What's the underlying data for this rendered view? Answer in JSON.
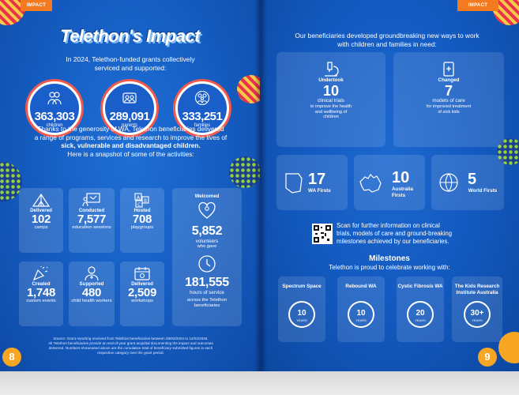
{
  "tabs": {
    "left": "IMPACT",
    "right": "IMPACT"
  },
  "left": {
    "title": "Telethon's Impact",
    "intro_1": "In 2024, Telethon-funded grants collectively",
    "intro_2": "serviced and supported:",
    "stats": [
      {
        "value": "363,303",
        "label": "children",
        "icon": "children-icon"
      },
      {
        "value": "289,091",
        "label": "parents",
        "icon": "parents-icon"
      },
      {
        "value": "333,251",
        "label": "families",
        "icon": "family-icon"
      }
    ],
    "para_1": "Thanks to the generosity of WA, Telethon beneficiaries delivered",
    "para_2": "a range of programs, services and research to improve the lives of",
    "para_3": "sick, vulnerable and disadvantaged children.",
    "para_4": "Here is a snapshot of some of the activities:",
    "activities": [
      {
        "top": "Delivered",
        "value": "102",
        "bottom": "camps",
        "icon": "tent-icon"
      },
      {
        "top": "Conducted",
        "value": "7,577",
        "bottom": "education sessions",
        "icon": "presentation-icon"
      },
      {
        "top": "Hosted",
        "value": "708",
        "bottom": "playgroups",
        "icon": "abc-blocks-icon"
      },
      {
        "top": "Created",
        "value": "1,748",
        "bottom": "custom events",
        "icon": "party-popper-icon"
      },
      {
        "top": "Supported",
        "value": "480",
        "bottom": "child health workers",
        "icon": "health-worker-icon"
      },
      {
        "top": "Delivered",
        "value": "2,509",
        "bottom": "workshops",
        "icon": "calendar-icon"
      }
    ],
    "volunteers": {
      "top": "Welcomed",
      "value": "5,852",
      "mid1": "volunteers",
      "mid2": "who gave",
      "hours": "181,555",
      "hours_label": "hours of service",
      "tail1": "across the Telethon",
      "tail2": "beneficiaries"
    },
    "source_1": "Source: Grant reporting received from Telethon beneficiaries between 29/02/2024 to 12/02/2025.",
    "source_2": "All Telethon beneficiaries provide an end-of-year grant acquittal documenting the impact and outcomes",
    "source_3": "delivered. Numbers showcased above are the cumulative total of beneficiary submitted figures in each",
    "source_4": "respective category over the grant period.",
    "page_number": "8"
  },
  "right": {
    "head_1": "Our beneficiaries developed groundbreaking new ways to work",
    "head_2": "with children and families in need:",
    "undertook": {
      "top": "Undertook",
      "value": "10",
      "l1": "clinical trials",
      "l2": "to improve the health",
      "l3": "and wellbeing of",
      "l4": "children"
    },
    "changed": {
      "top": "Changed",
      "value": "7",
      "l1": "models of care",
      "l2": "for improved treatment",
      "l3": "of sick kids"
    },
    "firsts": [
      {
        "value": "17",
        "label": "WA Firsts",
        "icon": "wa-map-icon"
      },
      {
        "value": "10",
        "label": "Australia Firsts",
        "icon": "australia-map-icon"
      },
      {
        "value": "5",
        "label": "World Firsts",
        "icon": "globe-icon"
      }
    ],
    "scan_1": "Scan for further information on clinical",
    "scan_2": "trials, models of care and ground-breaking",
    "scan_3": "milestones achieved by our beneficiaries.",
    "milestones_title": "Milestones",
    "milestones_sub": "Telethon is proud to celebrate working with:",
    "milestones": [
      {
        "name": "Spectrum Space",
        "years": "10"
      },
      {
        "name": "Rebound WA",
        "years": "10"
      },
      {
        "name": "Cystic Fibrosis WA",
        "years": "20"
      },
      {
        "name": "The Kids Research Institute Australia",
        "years": "30+"
      }
    ],
    "years_word": "YEARS",
    "page_number": "9"
  }
}
